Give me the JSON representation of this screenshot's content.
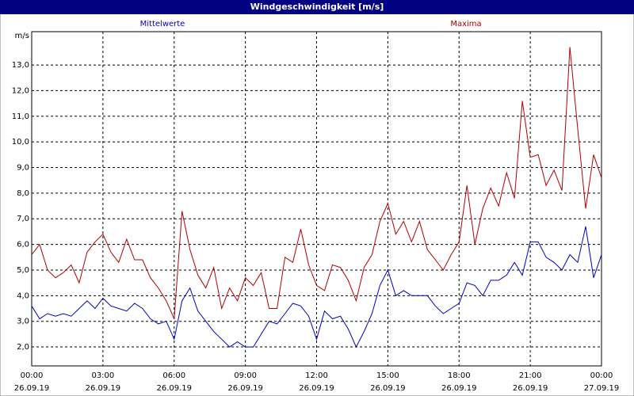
{
  "chart_data": {
    "type": "line",
    "title": "Windgeschwindigkeit [m/s]",
    "y_label": "m/s",
    "xlim": [
      0,
      1440
    ],
    "xticks": [
      {
        "value": 0,
        "label": "00:00",
        "date": "26.09.19"
      },
      {
        "value": 180,
        "label": "03:00",
        "date": "26.09.19"
      },
      {
        "value": 360,
        "label": "06:00",
        "date": "26.09.19"
      },
      {
        "value": 540,
        "label": "09:00",
        "date": "26.09.19"
      },
      {
        "value": 720,
        "label": "12:00",
        "date": "26.09.19"
      },
      {
        "value": 900,
        "label": "15:00",
        "date": "26.09.19"
      },
      {
        "value": 1080,
        "label": "18:00",
        "date": "26.09.19"
      },
      {
        "value": 1260,
        "label": "21:00",
        "date": "26.09.19"
      },
      {
        "value": 1440,
        "label": "00:00",
        "date": "27.09.19"
      }
    ],
    "ylim": [
      1.26,
      14.3
    ],
    "yticks": [
      {
        "value": 2,
        "label": "2,0"
      },
      {
        "value": 3,
        "label": "3,0"
      },
      {
        "value": 4,
        "label": "4,0"
      },
      {
        "value": 5,
        "label": "5,0"
      },
      {
        "value": 6,
        "label": "6,0"
      },
      {
        "value": 7,
        "label": "7,0"
      },
      {
        "value": 8,
        "label": "8,0"
      },
      {
        "value": 9,
        "label": "9,0"
      },
      {
        "value": 10,
        "label": "10,0"
      },
      {
        "value": 11,
        "label": "11,0"
      },
      {
        "value": 12,
        "label": "12,0"
      },
      {
        "value": 13,
        "label": "13,0"
      }
    ],
    "grid": true,
    "x": [
      0,
      20,
      40,
      60,
      80,
      100,
      120,
      140,
      160,
      180,
      200,
      220,
      240,
      260,
      280,
      300,
      320,
      340,
      360,
      380,
      400,
      420,
      440,
      460,
      480,
      500,
      520,
      540,
      560,
      580,
      600,
      620,
      640,
      660,
      680,
      700,
      720,
      740,
      760,
      780,
      800,
      820,
      840,
      860,
      880,
      900,
      920,
      940,
      960,
      980,
      1000,
      1020,
      1040,
      1060,
      1080,
      1100,
      1120,
      1140,
      1160,
      1180,
      1200,
      1220,
      1240,
      1260,
      1280,
      1300,
      1320,
      1340,
      1360,
      1380,
      1400,
      1420,
      1440
    ],
    "series": [
      {
        "name": "Mittelwerte",
        "color": "#0000c0",
        "values": [
          3.6,
          3.1,
          3.3,
          3.2,
          3.3,
          3.2,
          3.5,
          3.8,
          3.5,
          3.9,
          3.6,
          3.5,
          3.4,
          3.7,
          3.5,
          3.1,
          2.9,
          3.0,
          2.3,
          3.8,
          4.3,
          3.4,
          3.0,
          2.6,
          2.3,
          2.0,
          2.2,
          2.0,
          2.0,
          2.5,
          3.0,
          2.9,
          3.3,
          3.7,
          3.6,
          3.2,
          2.3,
          3.4,
          3.1,
          3.2,
          2.7,
          2.0,
          2.6,
          3.3,
          4.4,
          5.0,
          4.0,
          4.2,
          4.0,
          4.0,
          4.0,
          3.6,
          3.3,
          3.5,
          3.7,
          4.5,
          4.4,
          4.0,
          4.6,
          4.6,
          4.8,
          5.3,
          4.8,
          6.1,
          6.1,
          5.5,
          5.3,
          5.0,
          5.6,
          5.3,
          6.7,
          4.7,
          5.6
        ]
      },
      {
        "name": "Maxima",
        "color": "#b00000",
        "values": [
          5.6,
          6.0,
          5.0,
          4.7,
          4.9,
          5.2,
          4.5,
          5.7,
          6.1,
          6.4,
          5.7,
          5.3,
          6.2,
          5.4,
          5.4,
          4.7,
          4.3,
          3.8,
          3.1,
          7.3,
          5.8,
          4.8,
          4.3,
          5.1,
          3.5,
          4.3,
          3.8,
          4.7,
          4.4,
          4.9,
          3.5,
          3.5,
          5.5,
          5.3,
          6.6,
          5.2,
          4.4,
          4.2,
          5.2,
          5.1,
          4.6,
          3.8,
          5.1,
          5.6,
          6.9,
          7.6,
          6.4,
          6.9,
          6.1,
          6.9,
          5.8,
          5.4,
          5.0,
          5.6,
          6.1,
          8.3,
          6.0,
          7.4,
          8.2,
          7.5,
          8.8,
          7.8,
          11.6,
          9.4,
          9.5,
          8.3,
          8.9,
          8.1,
          13.7,
          10.5,
          7.4,
          9.5,
          8.6
        ]
      }
    ]
  }
}
